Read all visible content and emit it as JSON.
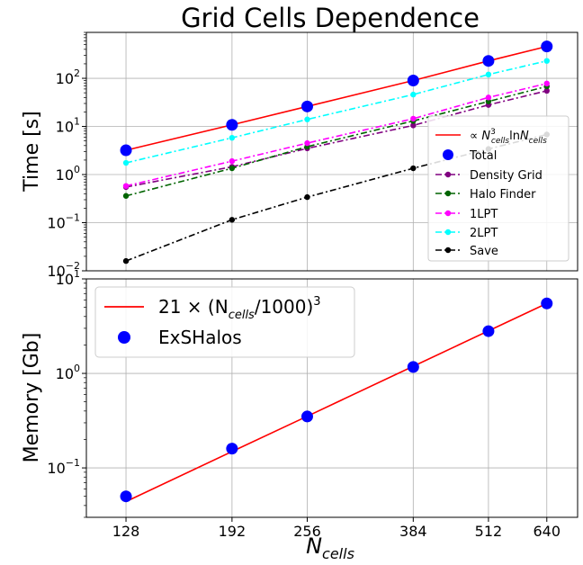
{
  "title": "Grid Cells Dependence",
  "xlabel_main": "N",
  "xlabel_sub": "cells",
  "chart_data": [
    {
      "type": "line",
      "title": "Grid Cells Dependence",
      "ylabel": "Time [s]",
      "yscale": "log",
      "ylim": [
        0.01,
        900
      ],
      "xscale": "log",
      "xlim": [
        110,
        720
      ],
      "x": [
        128,
        192,
        256,
        384,
        512,
        640
      ],
      "grid": true,
      "legend_position": "right",
      "series": [
        {
          "name": "∝ N³cells ln Ncells",
          "legend_main": "∝ N",
          "legend_sup": "3",
          "legend_sub": "cells",
          "legend_mid": "ln",
          "legend_main2": "N",
          "legend_sub2": "cells",
          "style": "solid",
          "marker": "none",
          "color": "#ff0000",
          "values": [
            3.2,
            10.8,
            26.0,
            90.0,
            230.0,
            460.0
          ]
        },
        {
          "name": "Total",
          "style": "none",
          "marker": "big",
          "color": "#0000ff",
          "values": [
            3.2,
            10.8,
            26.0,
            90.0,
            230.0,
            460.0
          ]
        },
        {
          "name": "Density Grid",
          "style": "dashdot",
          "marker": "small",
          "color": "#800080",
          "values": [
            0.55,
            1.45,
            3.5,
            10.5,
            28.0,
            55.0
          ]
        },
        {
          "name": "Halo Finder",
          "style": "dashdot",
          "marker": "small",
          "color": "#006400",
          "values": [
            0.36,
            1.35,
            3.8,
            13.0,
            33.0,
            68.0
          ]
        },
        {
          "name": "1LPT",
          "style": "dashdot",
          "marker": "small",
          "color": "#ff00ff",
          "values": [
            0.58,
            1.9,
            4.5,
            14.5,
            40.0,
            78.0
          ]
        },
        {
          "name": "2LPT",
          "style": "dashdot",
          "marker": "small",
          "color": "#00ffff",
          "values": [
            1.75,
            5.8,
            14.0,
            46.0,
            120.0,
            230.0
          ]
        },
        {
          "name": "Save",
          "style": "dashdot",
          "marker": "small",
          "color": "#000000",
          "values": [
            0.016,
            0.115,
            0.34,
            1.35,
            3.4,
            6.8
          ]
        }
      ],
      "y_ticks": [
        0.01,
        0.1,
        1,
        10,
        100
      ],
      "y_tick_labels": [
        {
          "base": "10",
          "exp": "−2"
        },
        {
          "base": "10",
          "exp": "−1"
        },
        {
          "base": "10",
          "exp": "0"
        },
        {
          "base": "10",
          "exp": "1"
        },
        {
          "base": "10",
          "exp": "2"
        }
      ]
    },
    {
      "type": "line",
      "ylabel": "Memory [Gb]",
      "yscale": "log",
      "ylim": [
        0.03,
        10
      ],
      "xscale": "log",
      "xlim": [
        110,
        720
      ],
      "grid": true,
      "legend_position": "top-left",
      "x": [
        128,
        192,
        256,
        384,
        512,
        640
      ],
      "series": [
        {
          "name": "21 × (Ncells/1000)³",
          "legend_main": "21 × (N",
          "legend_sub": "cells",
          "legend_tail": "/1000)",
          "legend_sup": "3",
          "style": "solid",
          "marker": "none",
          "color": "#ff0000",
          "values": [
            0.044,
            0.149,
            0.352,
            1.19,
            2.82,
            5.5
          ]
        },
        {
          "name": "ExSHalos",
          "style": "none",
          "marker": "big",
          "color": "#0000ff",
          "values": [
            0.05,
            0.16,
            0.35,
            1.17,
            2.8,
            5.5
          ]
        }
      ],
      "y_ticks": [
        0.1,
        1,
        10
      ],
      "y_tick_labels": [
        {
          "base": "10",
          "exp": "−1"
        },
        {
          "base": "10",
          "exp": "0"
        },
        {
          "base": "10",
          "exp": "1"
        }
      ],
      "x_tick_labels": [
        "128",
        "192",
        "256",
        "384",
        "512",
        "640"
      ]
    }
  ]
}
